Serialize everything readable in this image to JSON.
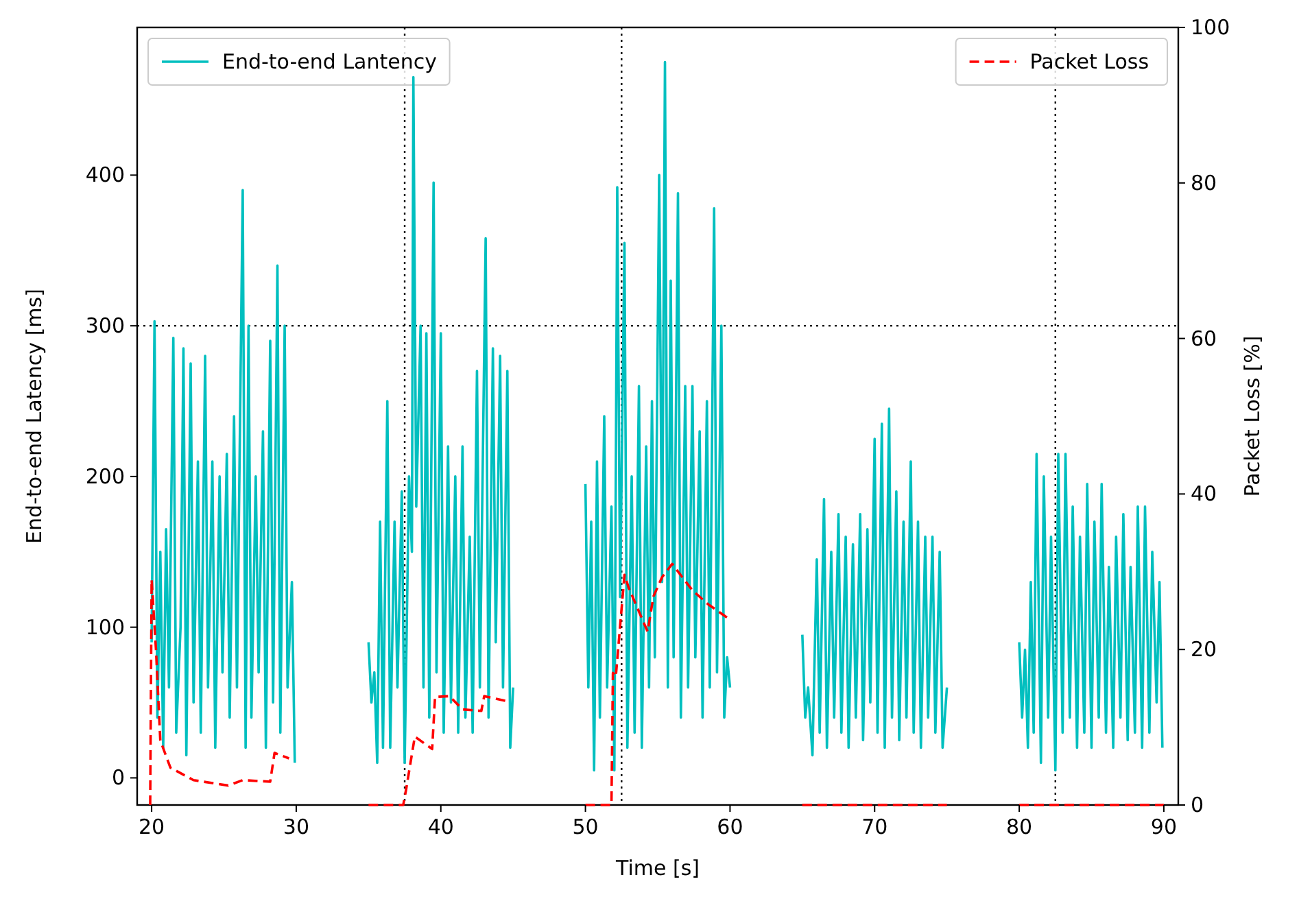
{
  "chart_data": {
    "type": "line",
    "xlabel": "Time [s]",
    "ylabel": "End-to-end Latency [ms]",
    "y2label": "Packet Loss [%]",
    "xlim": [
      19,
      91
    ],
    "xticks": [
      20,
      30,
      40,
      50,
      60,
      70,
      80,
      90
    ],
    "ylim": [
      -18,
      498
    ],
    "yticks": [
      0,
      100,
      200,
      300,
      400
    ],
    "y2lim": [
      0,
      100
    ],
    "y2ticks": [
      0,
      20,
      40,
      60,
      80,
      100
    ],
    "grid": false,
    "legend": "top",
    "marker": "none",
    "ref_lines": [
      {
        "axis": "y",
        "value": 300,
        "color": "#000000",
        "line_style": "dotted"
      },
      {
        "axis": "x",
        "value": 37.5,
        "color": "#000000",
        "line_style": "dotted"
      },
      {
        "axis": "x",
        "value": 52.5,
        "color": "#000000",
        "line_style": "dotted"
      },
      {
        "axis": "x",
        "value": 82.5,
        "color": "#000000",
        "line_style": "dotted"
      }
    ],
    "series": [
      {
        "name": "End-to-end Lantency",
        "color": "#00bfbf",
        "line_style": "solid",
        "x": [
          20.0,
          20.2,
          20.4,
          20.6,
          20.8,
          21.0,
          21.2,
          21.5,
          21.7,
          22.0,
          22.2,
          22.4,
          22.7,
          22.9,
          23.2,
          23.4,
          23.7,
          23.9,
          24.2,
          24.4,
          24.7,
          24.9,
          25.2,
          25.4,
          25.7,
          25.9,
          26.3,
          26.5,
          26.7,
          26.9,
          27.2,
          27.4,
          27.7,
          27.9,
          28.2,
          28.4,
          28.7,
          28.9,
          29.2,
          29.4,
          29.7,
          29.9,
          32.5,
          35.0,
          35.2,
          35.4,
          35.6,
          35.8,
          36.0,
          36.3,
          36.5,
          36.8,
          37.0,
          37.3,
          37.5,
          37.8,
          38.0,
          38.1,
          38.3,
          38.6,
          38.8,
          39.0,
          39.2,
          39.5,
          39.7,
          40.0,
          40.2,
          40.5,
          40.7,
          41.0,
          41.2,
          41.5,
          41.7,
          42.0,
          42.2,
          42.5,
          42.7,
          43.1,
          43.3,
          43.6,
          43.8,
          44.1,
          44.3,
          44.6,
          44.8,
          45.0,
          47.5,
          50.0,
          50.2,
          50.4,
          50.6,
          50.8,
          51.0,
          51.3,
          51.5,
          51.8,
          52.0,
          52.2,
          52.4,
          52.7,
          52.9,
          53.2,
          53.4,
          53.7,
          53.9,
          54.2,
          54.4,
          54.6,
          54.8,
          55.1,
          55.3,
          55.5,
          55.7,
          55.9,
          56.1,
          56.4,
          56.6,
          56.9,
          57.1,
          57.4,
          57.6,
          57.9,
          58.1,
          58.4,
          58.6,
          58.9,
          59.1,
          59.4,
          59.6,
          59.8,
          60.0,
          62.5,
          65.0,
          65.2,
          65.4,
          65.7,
          66.0,
          66.2,
          66.5,
          66.7,
          67.0,
          67.2,
          67.5,
          67.7,
          68.0,
          68.2,
          68.5,
          68.7,
          69.0,
          69.2,
          69.5,
          69.7,
          70.0,
          70.2,
          70.5,
          70.7,
          71.0,
          71.2,
          71.5,
          71.7,
          72.0,
          72.2,
          72.5,
          72.7,
          73.0,
          73.2,
          73.5,
          73.7,
          74.0,
          74.2,
          74.5,
          74.7,
          75.0,
          77.5,
          80.0,
          80.2,
          80.4,
          80.6,
          80.8,
          81.0,
          81.2,
          81.5,
          81.7,
          82.0,
          82.2,
          82.5,
          82.7,
          83.0,
          83.2,
          83.5,
          83.7,
          84.0,
          84.2,
          84.5,
          84.7,
          85.0,
          85.2,
          85.5,
          85.7,
          86.0,
          86.2,
          86.5,
          86.7,
          87.0,
          87.2,
          87.5,
          87.7,
          88.0,
          88.2,
          88.5,
          88.7,
          89.0,
          89.2,
          89.5,
          89.7,
          89.9
        ],
        "values": [
          90,
          303,
          40,
          150,
          20,
          165,
          60,
          292,
          30,
          100,
          285,
          15,
          275,
          50,
          210,
          30,
          280,
          60,
          210,
          20,
          200,
          70,
          215,
          40,
          240,
          60,
          390,
          20,
          300,
          40,
          200,
          70,
          230,
          20,
          290,
          50,
          340,
          30,
          300,
          60,
          130,
          10,
          null,
          90,
          50,
          70,
          10,
          170,
          20,
          250,
          20,
          170,
          60,
          190,
          10,
          200,
          150,
          465,
          180,
          300,
          60,
          295,
          40,
          395,
          70,
          295,
          30,
          220,
          50,
          200,
          30,
          220,
          40,
          160,
          30,
          270,
          60,
          358,
          40,
          285,
          90,
          280,
          60,
          270,
          20,
          60,
          null,
          195,
          60,
          170,
          5,
          210,
          40,
          240,
          60,
          180,
          5,
          392,
          120,
          355,
          20,
          200,
          30,
          260,
          20,
          220,
          60,
          250,
          80,
          400,
          130,
          475,
          60,
          330,
          80,
          388,
          40,
          260,
          60,
          260,
          80,
          230,
          40,
          250,
          60,
          378,
          70,
          300,
          40,
          80,
          60,
          null,
          95,
          40,
          60,
          15,
          145,
          30,
          185,
          20,
          150,
          40,
          175,
          30,
          160,
          20,
          155,
          40,
          175,
          25,
          165,
          50,
          225,
          30,
          235,
          20,
          245,
          40,
          190,
          25,
          170,
          40,
          210,
          30,
          170,
          20,
          160,
          40,
          160,
          30,
          150,
          20,
          60,
          null,
          90,
          40,
          85,
          20,
          130,
          30,
          215,
          10,
          200,
          40,
          160,
          5,
          215,
          30,
          215,
          40,
          180,
          20,
          160,
          30,
          195,
          20,
          170,
          40,
          195,
          30,
          140,
          20,
          160,
          40,
          175,
          25,
          140,
          30,
          180,
          20,
          180,
          30,
          150,
          50,
          130,
          20
        ]
      },
      {
        "name": "Packet Loss",
        "color": "#ff0000",
        "line_style": "dashed",
        "axis": "y2",
        "x": [
          19.9,
          20.0,
          20.3,
          20.6,
          21.3,
          22.9,
          25.3,
          26.3,
          28.2,
          28.5,
          29.5,
          32.5,
          35.0,
          37.4,
          37.6,
          38.2,
          39.4,
          39.6,
          40.6,
          41.5,
          42.8,
          43.0,
          44.7,
          47.5,
          50.0,
          51.8,
          51.9,
          52.1,
          52.7,
          53.0,
          54.3,
          54.7,
          55.3,
          56.0,
          57.4,
          58.5,
          59.8,
          62.5,
          65.0,
          75.0,
          77.5,
          80.0,
          90.0
        ],
        "values": [
          0,
          29,
          20,
          8.3,
          4.8,
          3.2,
          2.5,
          3.2,
          3.0,
          6.7,
          6.0,
          null,
          0,
          0,
          2,
          8.8,
          7.2,
          13.9,
          14,
          12.3,
          12.1,
          14,
          13.3,
          null,
          0,
          0,
          17,
          16.5,
          29.6,
          27.9,
          22.3,
          26.8,
          29.3,
          31,
          27.6,
          25.8,
          24.1,
          null,
          0,
          0,
          null,
          0,
          0
        ]
      }
    ]
  }
}
